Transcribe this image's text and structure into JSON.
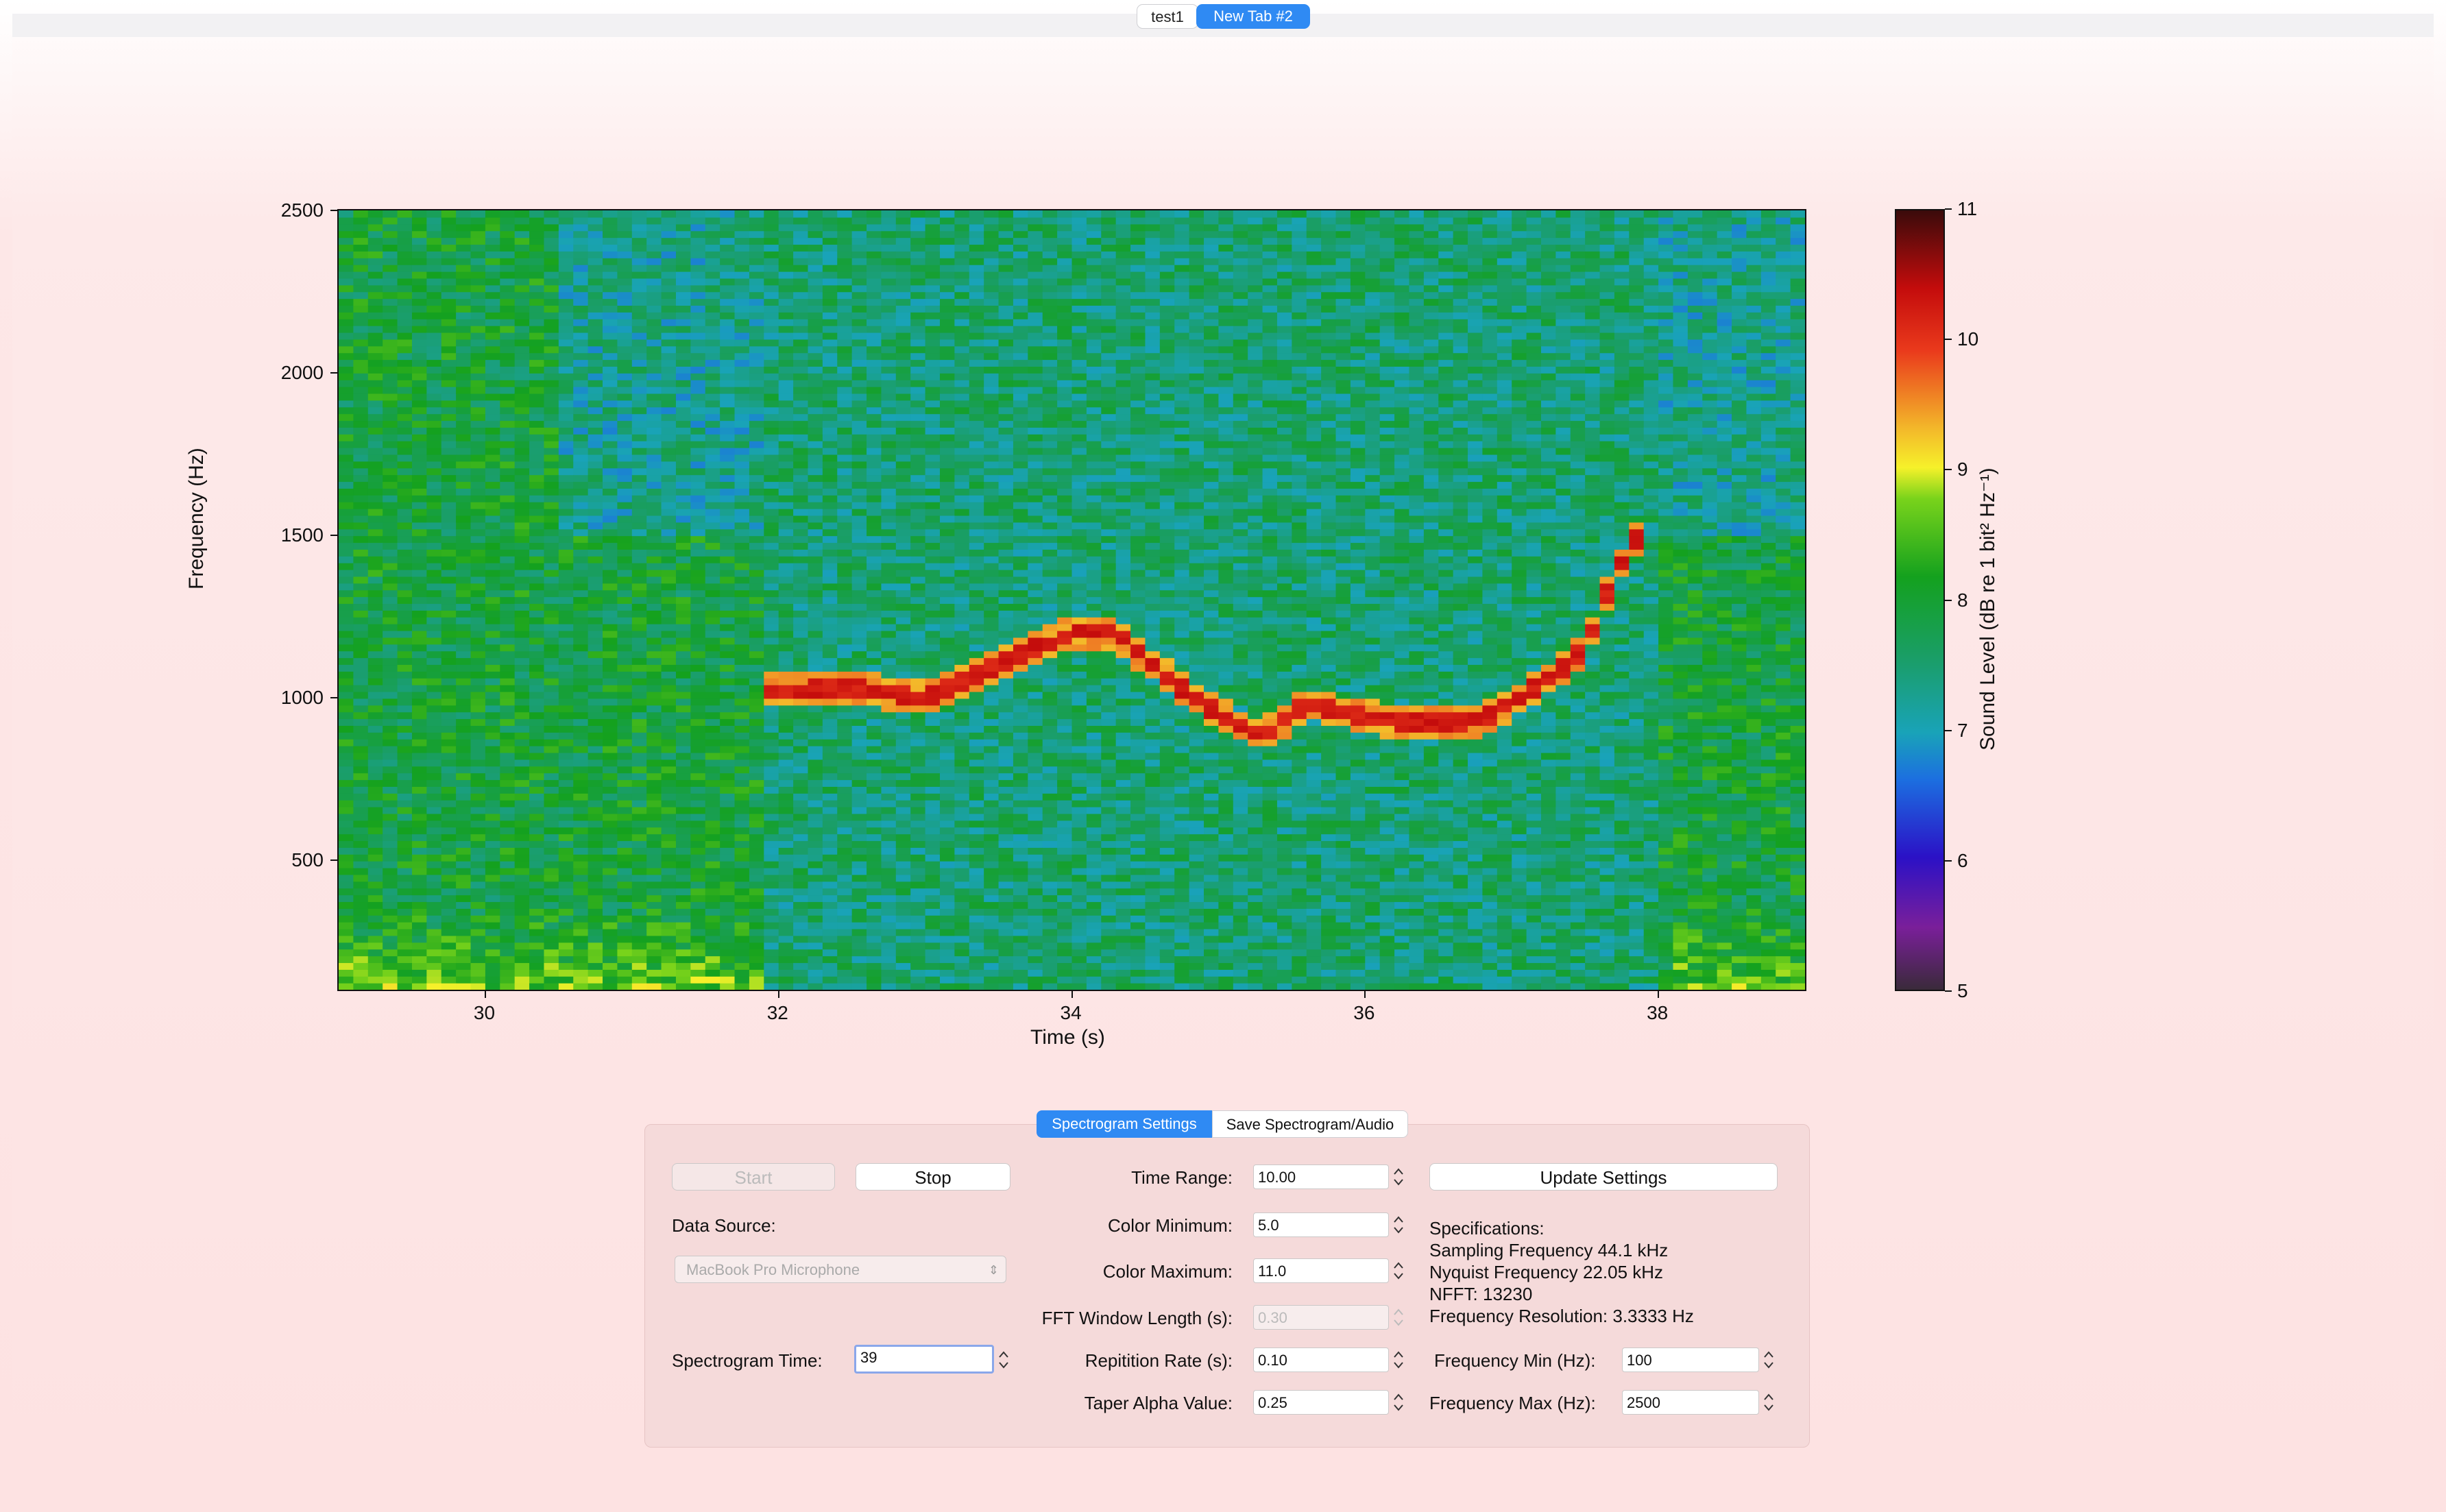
{
  "tabs": [
    {
      "label": "test1",
      "active": false
    },
    {
      "label": "New Tab #2",
      "active": true
    }
  ],
  "chart_data": {
    "type": "heatmap",
    "title": "",
    "xlabel": "Time (s)",
    "ylabel": "Frequency (Hz)",
    "xlim": [
      29,
      39
    ],
    "ylim": [
      100,
      2500
    ],
    "x_ticks": [
      30,
      32,
      34,
      36,
      38
    ],
    "y_ticks": [
      500,
      1000,
      1500,
      2000,
      2500
    ],
    "colorbar": {
      "label": "Sound Level (dB re 1 bit² Hz⁻¹)",
      "range": [
        5,
        11
      ],
      "ticks": [
        5,
        6,
        7,
        8,
        9,
        10,
        11
      ],
      "colormap": "nipy_spectral-like"
    },
    "dominant_tone": {
      "time_s": [
        31.9,
        32.5,
        33.0,
        33.5,
        34.0,
        34.3,
        34.6,
        35.0,
        35.3,
        35.6,
        36.0,
        36.4,
        36.8,
        37.2,
        37.5,
        37.7,
        37.9
      ],
      "freq_hz": [
        1020,
        1030,
        1000,
        1100,
        1200,
        1200,
        1080,
        950,
        880,
        980,
        940,
        920,
        930,
        1040,
        1150,
        1380,
        1520
      ]
    }
  },
  "controls": {
    "segments": {
      "settings": "Spectrogram Settings",
      "save": "Save Spectrogram/Audio"
    },
    "start_label": "Start",
    "stop_label": "Stop",
    "data_source_label": "Data Source:",
    "data_source_value": "MacBook Pro Microphone",
    "spectrogram_time_label": "Spectrogram Time:",
    "spectrogram_time_value": "39",
    "time_range_label": "Time Range:",
    "time_range_value": "10.00",
    "color_min_label": "Color Minimum:",
    "color_min_value": "5.0",
    "color_max_label": "Color Maximum:",
    "color_max_value": "11.0",
    "fft_window_label": "FFT Window Length (s):",
    "fft_window_value": "0.30",
    "repetition_label": "Repitition Rate (s):",
    "repetition_value": "0.10",
    "taper_label": "Taper Alpha Value:",
    "taper_value": "0.25",
    "update_label": "Update Settings",
    "freq_min_label": "Frequency Min (Hz):",
    "freq_min_value": "100",
    "freq_max_label": "Frequency Max (Hz):",
    "freq_max_value": "2500"
  },
  "specifications": [
    "Specifications:",
    "Sampling Frequency 44.1 kHz",
    "Nyquist Frequency 22.05 kHz",
    "NFFT: 13230",
    "Frequency Resolution: 3.3333 Hz"
  ],
  "colors": {
    "accent": "#2f8af3",
    "background": "#fde2e2"
  }
}
